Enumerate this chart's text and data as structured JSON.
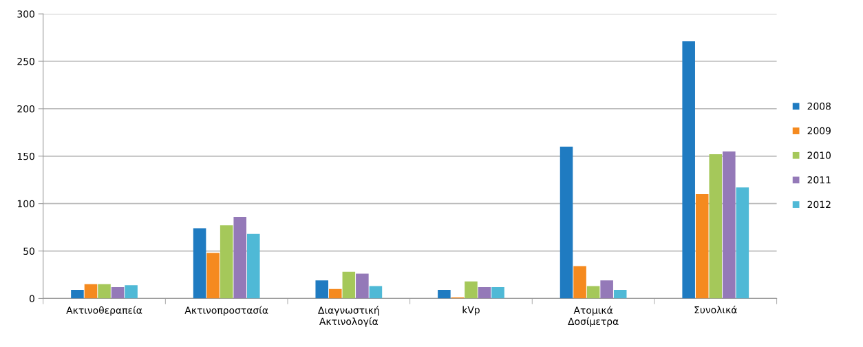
{
  "chart_data": {
    "type": "bar",
    "categories": [
      "Ακτινοθεραπεία",
      "Ακτινοπροστασία",
      "Διαγνωστική\nΑκτινολογία",
      "kVp",
      "Ατομικά\nΔοσίμετρα",
      "Συνολικά"
    ],
    "series": [
      {
        "name": "2008",
        "color": "#1f7bc1",
        "values": [
          9,
          74,
          19,
          9,
          160,
          271
        ]
      },
      {
        "name": "2009",
        "color": "#f58a1f",
        "values": [
          15,
          48,
          10,
          1,
          34,
          110
        ]
      },
      {
        "name": "2010",
        "color": "#a5c85a",
        "values": [
          15,
          77,
          28,
          18,
          13,
          152
        ]
      },
      {
        "name": "2011",
        "color": "#9479b8",
        "values": [
          12,
          86,
          26,
          12,
          19,
          155
        ]
      },
      {
        "name": "2012",
        "color": "#4fb9d6",
        "values": [
          14,
          68,
          13,
          12,
          9,
          117
        ]
      }
    ],
    "ylim": [
      0,
      300
    ],
    "yticks": [
      0,
      50,
      100,
      150,
      200,
      250,
      300
    ],
    "grid": "y",
    "legend": "right"
  }
}
